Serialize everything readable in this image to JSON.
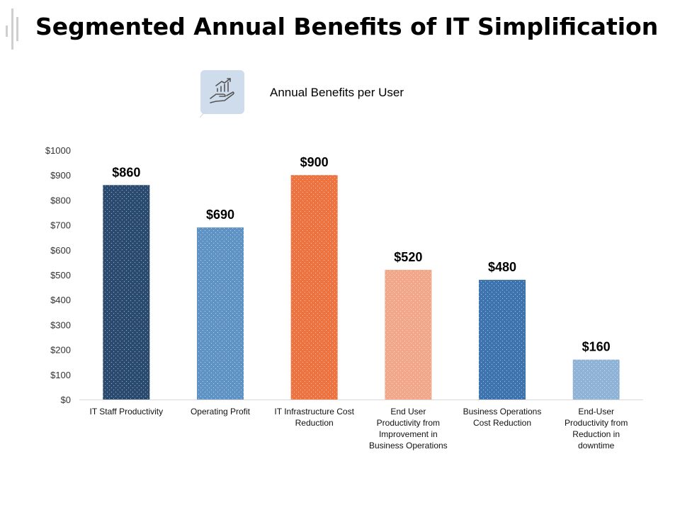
{
  "title": "Segmented Annual Benefits of IT Simplification",
  "subtitle": "Annual  Benefits per User",
  "icon": "hand-growth-chart-icon",
  "colors": {
    "bars": [
      "#2b4a6f",
      "#5f93c4",
      "#ed7340",
      "#f2a68a",
      "#3d74ae",
      "#8fb3d6"
    ],
    "icon_bg": "#cfdceb",
    "axis": "#d9d9d9"
  },
  "chart_data": {
    "type": "bar",
    "categories": [
      [
        "IT Staff Productivity"
      ],
      [
        "Operating Profit"
      ],
      [
        "IT Infrastructure Cost",
        "Reduction"
      ],
      [
        "End User",
        "Productivity from",
        "Improvement in",
        "Business Operations"
      ],
      [
        "Business Operations",
        "Cost Reduction"
      ],
      [
        "End-User",
        "Productivity from",
        "Reduction in",
        "downtime"
      ]
    ],
    "values": [
      860,
      690,
      900,
      520,
      480,
      160
    ],
    "data_labels": [
      "$860",
      "$690",
      "$900",
      "$520",
      "$480",
      "$160"
    ],
    "yticks": [
      "$0",
      "$100",
      "$200",
      "$300",
      "$400",
      "$500",
      "$600",
      "$700",
      "$800",
      "$900",
      "$1000"
    ],
    "ylim": [
      0,
      1000
    ],
    "grid": false,
    "legend": "none"
  }
}
